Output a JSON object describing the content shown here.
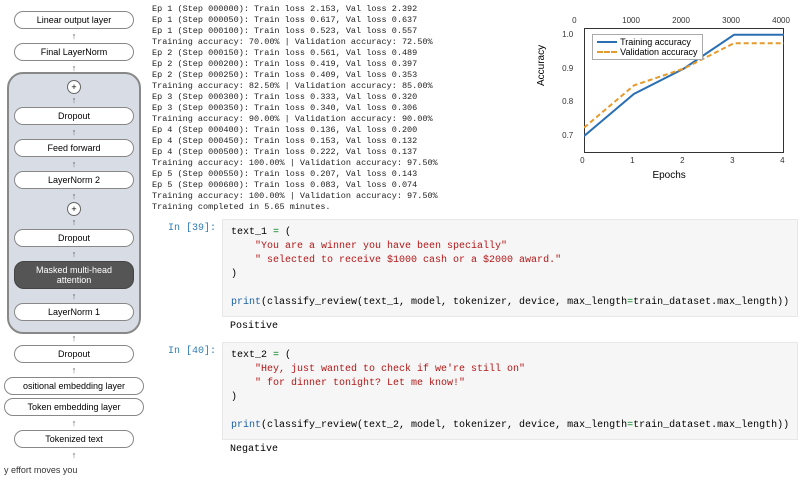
{
  "diagram": {
    "boxes": {
      "linear": "Linear output layer",
      "final_ln": "Final LayerNorm",
      "dropout": "Dropout",
      "ff": "Feed forward",
      "ln2": "LayerNorm 2",
      "mha": "Masked multi-head attention",
      "ln1": "LayerNorm 1",
      "pos": "ositional embedding layer",
      "tok": "Token embedding layer",
      "tokenized": "Tokenized text"
    },
    "caption": "y effort moves you"
  },
  "log_lines": [
    "Ep 1 (Step 000000): Train loss 2.153, Val loss 2.392",
    "Ep 1 (Step 000050): Train loss 0.617, Val loss 0.637",
    "Ep 1 (Step 000100): Train loss 0.523, Val loss 0.557",
    "Training accuracy: 70.00% | Validation accuracy: 72.50%",
    "Ep 2 (Step 000150): Train loss 0.561, Val loss 0.489",
    "Ep 2 (Step 000200): Train loss 0.419, Val loss 0.397",
    "Ep 2 (Step 000250): Train loss 0.409, Val loss 0.353",
    "Training accuracy: 82.50% | Validation accuracy: 85.00%",
    "Ep 3 (Step 000300): Train loss 0.333, Val loss 0.320",
    "Ep 3 (Step 000350): Train loss 0.340, Val loss 0.306",
    "Training accuracy: 90.00% | Validation accuracy: 90.00%",
    "Ep 4 (Step 000400): Train loss 0.136, Val loss 0.200",
    "Ep 4 (Step 000450): Train loss 0.153, Val loss 0.132",
    "Ep 4 (Step 000500): Train loss 0.222, Val loss 0.137",
    "Training accuracy: 100.00% | Validation accuracy: 97.50%",
    "Ep 5 (Step 000550): Train loss 0.207, Val loss 0.143",
    "Ep 5 (Step 000600): Train loss 0.083, Val loss 0.074",
    "Training accuracy: 100.00% | Validation accuracy: 97.50%",
    "Training completed in 5.65 minutes."
  ],
  "chart": {
    "legend_train": "Training accuracy",
    "legend_val": "Validation accuracy",
    "ylabel": "Accuracy",
    "xlabel": "Epochs",
    "x_top_ticks": [
      "0",
      "1000",
      "2000",
      "3000",
      "4000"
    ],
    "x_bot_ticks": [
      "0",
      "1",
      "2",
      "3",
      "4"
    ],
    "y_ticks": [
      "0.7",
      "0.8",
      "0.9",
      "1.0"
    ],
    "train_color": "#2b6fb3",
    "val_color": "#e69a2b",
    "train_points": [
      [
        0,
        0.7
      ],
      [
        1,
        0.825
      ],
      [
        2,
        0.9
      ],
      [
        3,
        1.0
      ],
      [
        4,
        1.0
      ]
    ],
    "val_points": [
      [
        0,
        0.725
      ],
      [
        1,
        0.85
      ],
      [
        2,
        0.9
      ],
      [
        3,
        0.975
      ],
      [
        4,
        0.975
      ]
    ]
  },
  "cells": [
    {
      "prompt": "In [39]:",
      "var": "text_1",
      "str1": "\"You are a winner you have been specially\"",
      "str2": "\" selected to receive $1000 cash or a $2000 award.\"",
      "call_pre": "print(classify_review(text_1, model, tokenizer, device, max_length",
      "call_kw": "=",
      "call_post": "train_dataset.max_length))",
      "output": "Positive"
    },
    {
      "prompt": "In [40]:",
      "var": "text_2",
      "str1": "\"Hey, just wanted to check if we're still on\"",
      "str2": "\" for dinner tonight? Let me know!\"",
      "call_pre": "print(classify_review(text_2, model, tokenizer, device, max_length",
      "call_kw": "=",
      "call_post": "train_dataset.max_length))",
      "output": "Negative"
    }
  ]
}
